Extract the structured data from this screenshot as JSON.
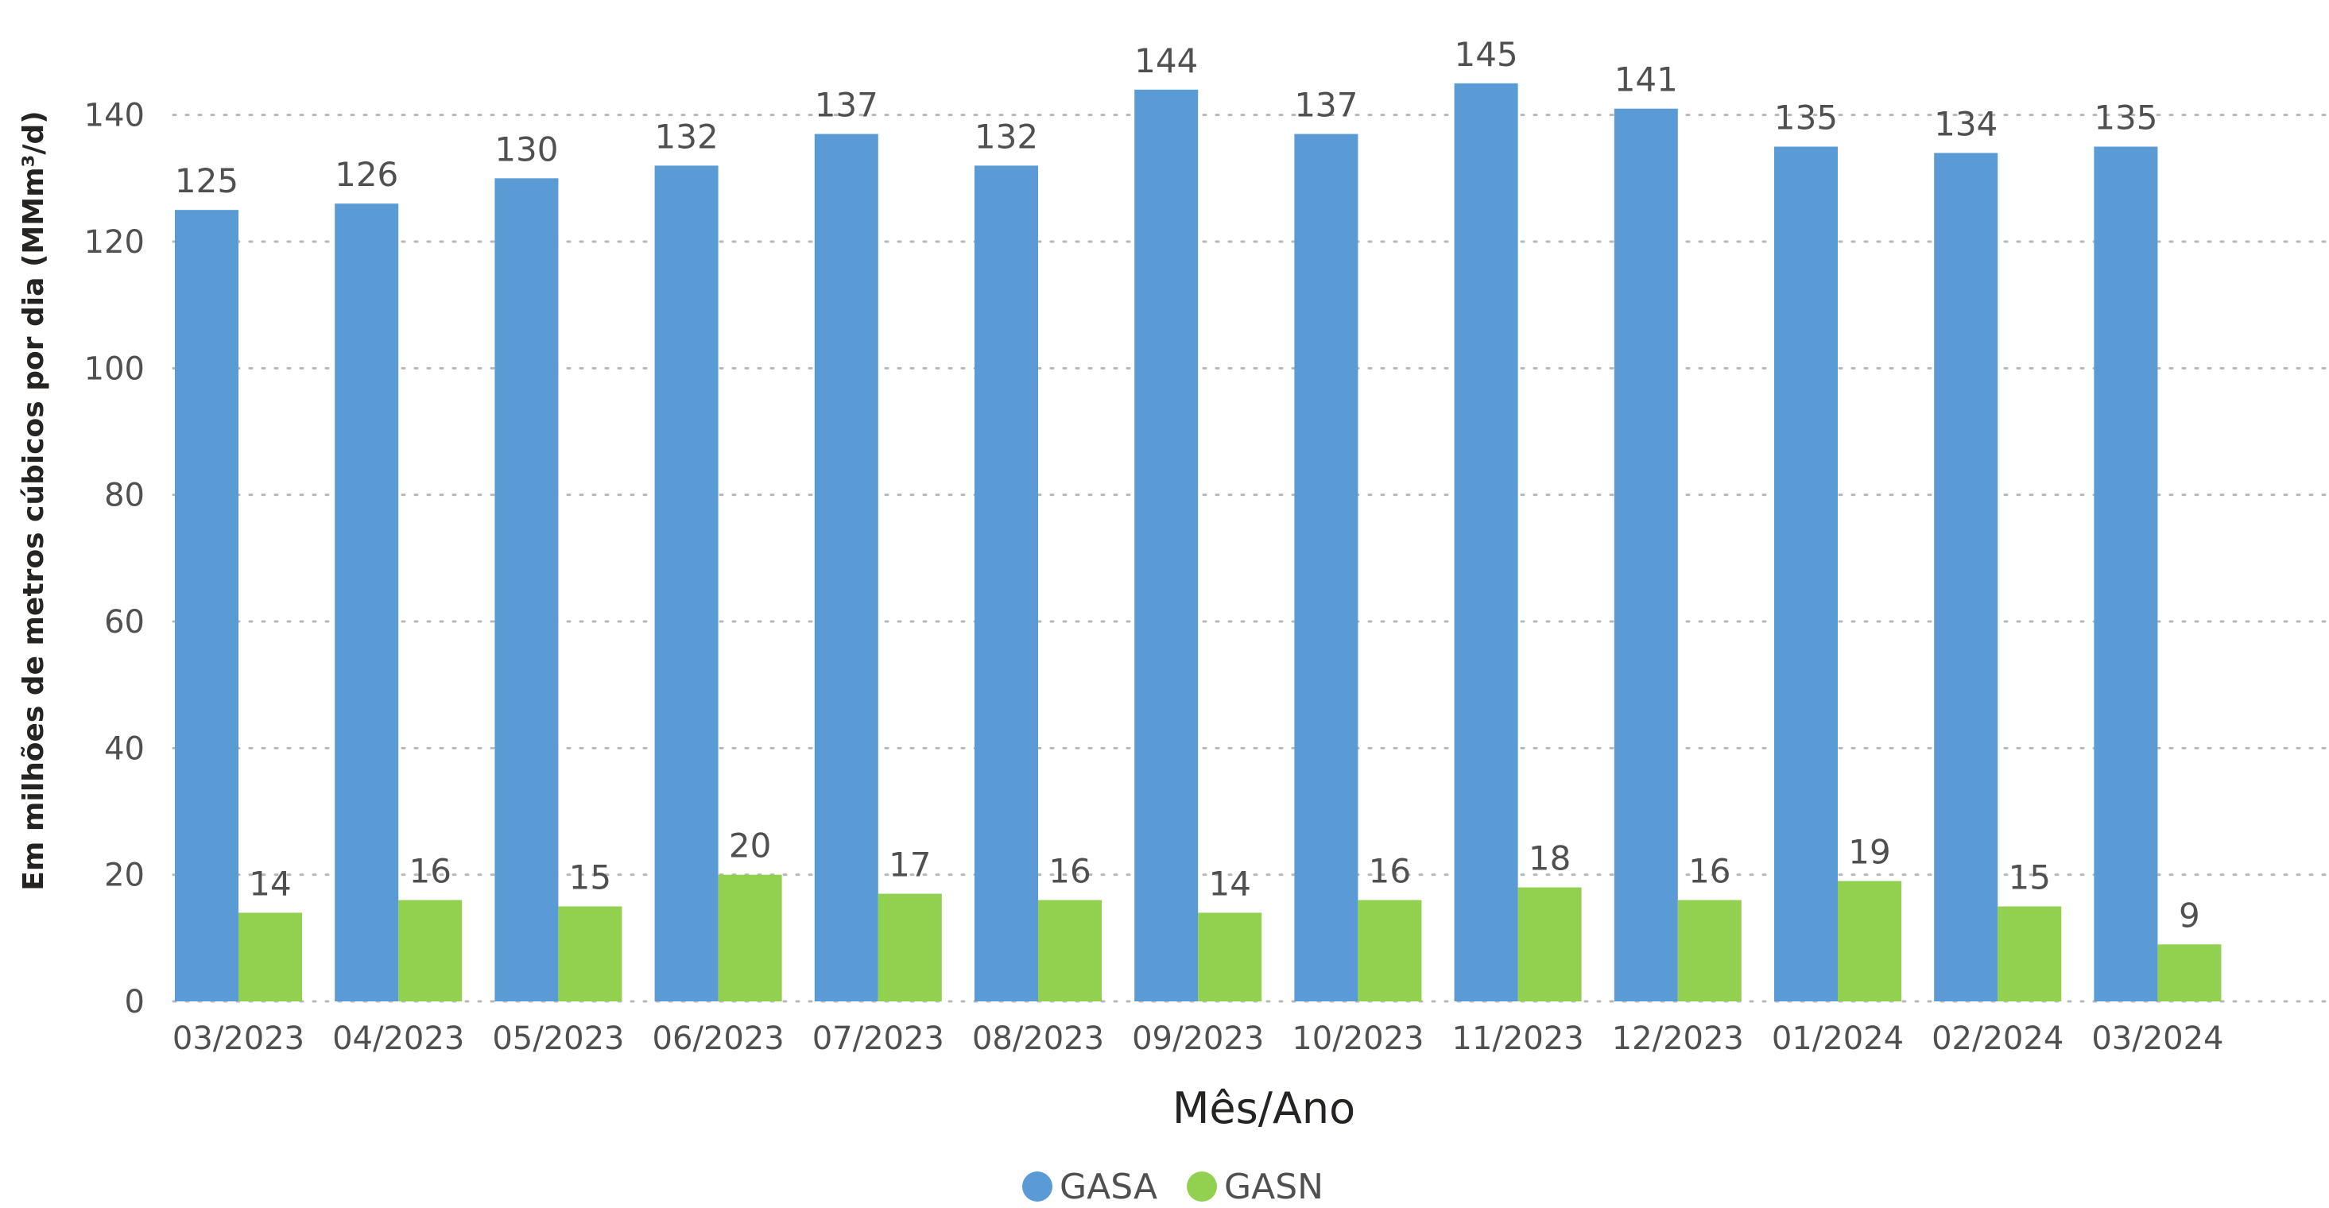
{
  "chart_data": {
    "type": "bar",
    "categories": [
      "03/2023",
      "04/2023",
      "05/2023",
      "06/2023",
      "07/2023",
      "08/2023",
      "09/2023",
      "10/2023",
      "11/2023",
      "12/2023",
      "01/2024",
      "02/2024",
      "03/2024"
    ],
    "series": [
      {
        "name": "GASA",
        "color": "#5b9bd5",
        "values": [
          125,
          126,
          130,
          132,
          137,
          132,
          144,
          137,
          145,
          141,
          135,
          134,
          135
        ]
      },
      {
        "name": "GASN",
        "color": "#92d050",
        "values": [
          14,
          16,
          15,
          20,
          17,
          16,
          14,
          16,
          18,
          16,
          19,
          15,
          9
        ]
      }
    ],
    "xlabel": "Mês/Ano",
    "ylabel": "Em milhões de metros cúbicos por dia (MMm³/d)",
    "ylim": [
      0,
      150
    ],
    "yticks": [
      0,
      20,
      40,
      60,
      80,
      100,
      120,
      140
    ],
    "grid": true,
    "legend": "bottom-center"
  }
}
